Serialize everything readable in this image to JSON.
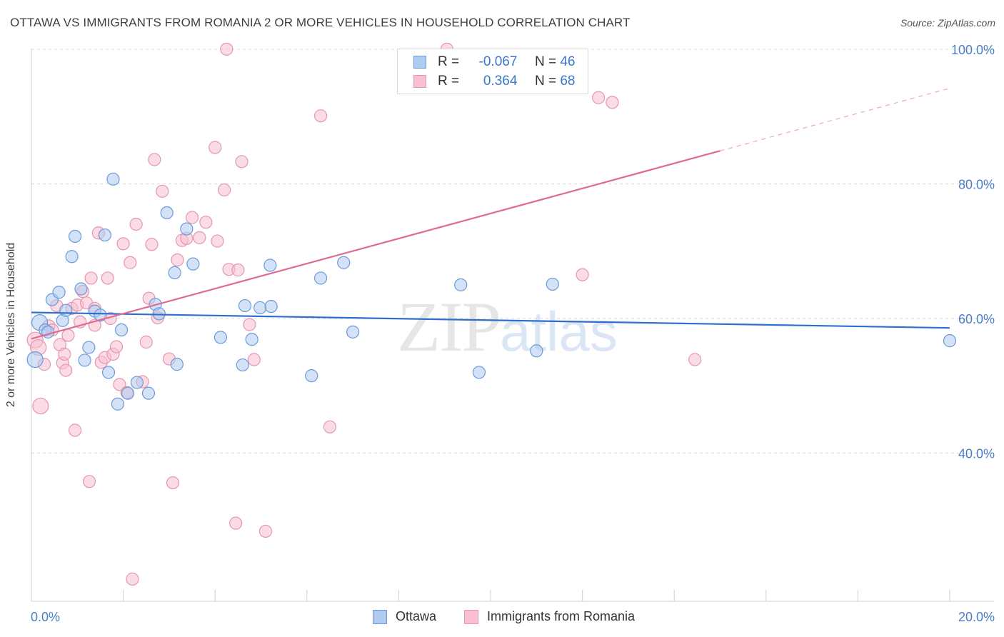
{
  "header": {
    "title": "OTTAWA VS IMMIGRANTS FROM ROMANIA 2 OR MORE VEHICLES IN HOUSEHOLD CORRELATION CHART",
    "source": "Source: ZipAtlas.com"
  },
  "watermark": {
    "zip": "ZIP",
    "atlas": "atlas"
  },
  "stats": [
    {
      "r_label": "R =",
      "r_value": "-0.067",
      "n_label": "N =",
      "n_value": "46"
    },
    {
      "r_label": "R =",
      "r_value": "0.364",
      "n_label": "N =",
      "n_value": "68"
    }
  ],
  "legend": {
    "ottawa": "Ottawa",
    "romania": "Immigrants from Romania"
  },
  "colors": {
    "ottawa_fill": "#aecbf0",
    "ottawa_stroke": "#6a9bd8",
    "ottawa_line": "#2f6fcc",
    "romania_fill": "#f7bfd0",
    "romania_stroke": "#e596b1",
    "romania_line": "#e06a94",
    "tick": "#4a7fc8",
    "grid": "#d9d9d9"
  },
  "chart_data": {
    "type": "scatter",
    "title": "OTTAWA VS IMMIGRANTS FROM ROMANIA 2 OR MORE VEHICLES IN HOUSEHOLD CORRELATION CHART",
    "xlabel": "",
    "ylabel": "2 or more Vehicles in Household",
    "xlim": [
      0,
      20
    ],
    "ylim": [
      18,
      102
    ],
    "x_tick_labels": [
      {
        "value": 0,
        "label": "0.0%"
      },
      {
        "value": 20,
        "label": "20.0%"
      }
    ],
    "y_tick_labels": [
      {
        "value": 40,
        "label": "40.0%"
      },
      {
        "value": 60,
        "label": "60.0%"
      },
      {
        "value": 80,
        "label": "80.0%"
      },
      {
        "value": 100,
        "label": "100.0%"
      }
    ],
    "y_gridlines": [
      40,
      60,
      80,
      100
    ],
    "legend_position": "bottom-center",
    "series": [
      {
        "name": "Ottawa",
        "r": -0.067,
        "n": 46,
        "trend": {
          "x0": 0,
          "y0": 60.9,
          "x1": 20,
          "y1": 58.6
        },
        "points": [
          [
            0.08,
            53.9
          ],
          [
            0.18,
            59.4
          ],
          [
            0.3,
            58.3
          ],
          [
            0.36,
            58.0
          ],
          [
            0.45,
            62.8
          ],
          [
            0.6,
            63.9
          ],
          [
            0.68,
            59.7
          ],
          [
            0.75,
            61.2
          ],
          [
            0.88,
            69.2
          ],
          [
            0.95,
            72.2
          ],
          [
            1.08,
            64.4
          ],
          [
            1.16,
            53.8
          ],
          [
            1.25,
            55.7
          ],
          [
            1.38,
            61.1
          ],
          [
            1.5,
            60.5
          ],
          [
            1.6,
            72.4
          ],
          [
            1.68,
            52.0
          ],
          [
            1.78,
            80.7
          ],
          [
            1.88,
            47.3
          ],
          [
            1.96,
            58.3
          ],
          [
            2.1,
            48.9
          ],
          [
            2.3,
            50.5
          ],
          [
            2.55,
            48.9
          ],
          [
            2.7,
            62.1
          ],
          [
            2.78,
            60.7
          ],
          [
            2.95,
            75.7
          ],
          [
            3.12,
            66.8
          ],
          [
            3.17,
            53.2
          ],
          [
            3.38,
            73.3
          ],
          [
            3.52,
            68.1
          ],
          [
            4.12,
            57.2
          ],
          [
            4.6,
            53.1
          ],
          [
            4.65,
            61.9
          ],
          [
            4.8,
            56.9
          ],
          [
            4.98,
            61.6
          ],
          [
            5.2,
            67.9
          ],
          [
            5.22,
            61.8
          ],
          [
            6.1,
            51.5
          ],
          [
            6.3,
            66.0
          ],
          [
            6.8,
            68.3
          ],
          [
            7.0,
            58.0
          ],
          [
            9.35,
            65.0
          ],
          [
            9.75,
            52.0
          ],
          [
            11.0,
            55.2
          ],
          [
            11.35,
            65.1
          ],
          [
            20.0,
            56.7
          ]
        ]
      },
      {
        "name": "Immigrants from Romania",
        "r": 0.364,
        "n": 68,
        "trend": {
          "x0": 0,
          "y0": 57.0,
          "x1": 15.0,
          "y1": 84.9,
          "dashed_to": {
            "x": 20,
            "y": 94.2
          }
        },
        "points": [
          [
            0.08,
            56.8
          ],
          [
            0.15,
            55.7
          ],
          [
            0.2,
            47.0
          ],
          [
            0.28,
            53.2
          ],
          [
            0.38,
            58.9
          ],
          [
            0.46,
            58.3
          ],
          [
            0.55,
            61.9
          ],
          [
            0.62,
            56.1
          ],
          [
            0.68,
            53.4
          ],
          [
            0.72,
            54.7
          ],
          [
            0.8,
            57.5
          ],
          [
            0.75,
            52.3
          ],
          [
            0.88,
            61.5
          ],
          [
            0.95,
            43.4
          ],
          [
            1.0,
            62.0
          ],
          [
            1.06,
            59.5
          ],
          [
            1.12,
            64.0
          ],
          [
            1.2,
            62.3
          ],
          [
            1.26,
            35.8
          ],
          [
            1.3,
            66.0
          ],
          [
            1.38,
            61.5
          ],
          [
            1.46,
            72.7
          ],
          [
            1.52,
            53.5
          ],
          [
            1.6,
            54.2
          ],
          [
            1.66,
            66.0
          ],
          [
            1.72,
            60.0
          ],
          [
            1.78,
            54.7
          ],
          [
            1.85,
            55.8
          ],
          [
            1.92,
            50.2
          ],
          [
            2.0,
            71.1
          ],
          [
            2.08,
            49.0
          ],
          [
            2.15,
            68.3
          ],
          [
            2.2,
            21.3
          ],
          [
            2.28,
            74.0
          ],
          [
            2.42,
            50.6
          ],
          [
            2.5,
            56.5
          ],
          [
            2.56,
            63.0
          ],
          [
            2.62,
            71.0
          ],
          [
            2.68,
            83.6
          ],
          [
            2.75,
            60.1
          ],
          [
            2.85,
            78.9
          ],
          [
            3.0,
            54.0
          ],
          [
            3.08,
            35.6
          ],
          [
            3.18,
            68.7
          ],
          [
            3.28,
            71.6
          ],
          [
            3.38,
            71.9
          ],
          [
            3.5,
            75.0
          ],
          [
            3.66,
            72.0
          ],
          [
            3.8,
            74.3
          ],
          [
            4.05,
            71.5
          ],
          [
            4.0,
            85.4
          ],
          [
            4.2,
            79.1
          ],
          [
            4.3,
            67.3
          ],
          [
            4.45,
            29.6
          ],
          [
            4.5,
            67.2
          ],
          [
            4.58,
            83.3
          ],
          [
            4.75,
            59.1
          ],
          [
            4.85,
            53.9
          ],
          [
            5.1,
            28.4
          ],
          [
            6.3,
            90.1
          ],
          [
            6.5,
            43.9
          ],
          [
            9.05,
            100.0
          ],
          [
            12.0,
            66.5
          ],
          [
            12.35,
            92.8
          ],
          [
            12.65,
            92.1
          ],
          [
            14.45,
            53.9
          ],
          [
            4.25,
            100.0
          ],
          [
            1.38,
            59.0
          ]
        ]
      }
    ]
  }
}
